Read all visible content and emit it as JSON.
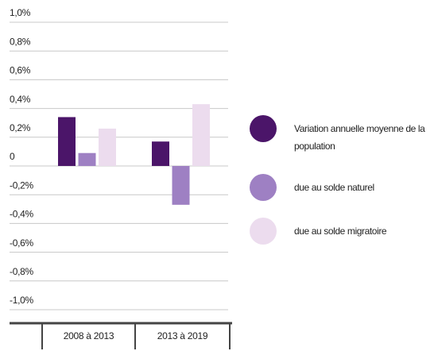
{
  "chart_data": {
    "type": "bar",
    "categories": [
      "2008 à 2013",
      "2013 à 2019"
    ],
    "series": [
      {
        "name": "Variation annuelle moyenne de la population",
        "color": "#4b1569",
        "values": [
          0.34,
          0.17
        ]
      },
      {
        "name": "due au solde naturel",
        "color": "#9e80c3",
        "values": [
          0.09,
          -0.27
        ]
      },
      {
        "name": "due au solde migratoire",
        "color": "#ecdcee",
        "values": [
          0.26,
          0.43
        ]
      }
    ],
    "ylim": [
      -1.0,
      1.0
    ],
    "yticks": [
      {
        "value": 1.0,
        "label": "1,0%"
      },
      {
        "value": 0.8,
        "label": "0,8%"
      },
      {
        "value": 0.6,
        "label": "0,6%"
      },
      {
        "value": 0.4,
        "label": "0,4%"
      },
      {
        "value": 0.2,
        "label": "0,2%"
      },
      0,
      {
        "value": -0.2,
        "label": "-0,2%"
      },
      {
        "value": -0.4,
        "label": "-0,4%"
      },
      {
        "value": -0.6,
        "label": "-0,6%"
      },
      {
        "value": -0.8,
        "label": "-0,8%"
      },
      {
        "value": -1.0,
        "label": "-1,0%"
      }
    ],
    "grid": true,
    "legend": "right"
  }
}
